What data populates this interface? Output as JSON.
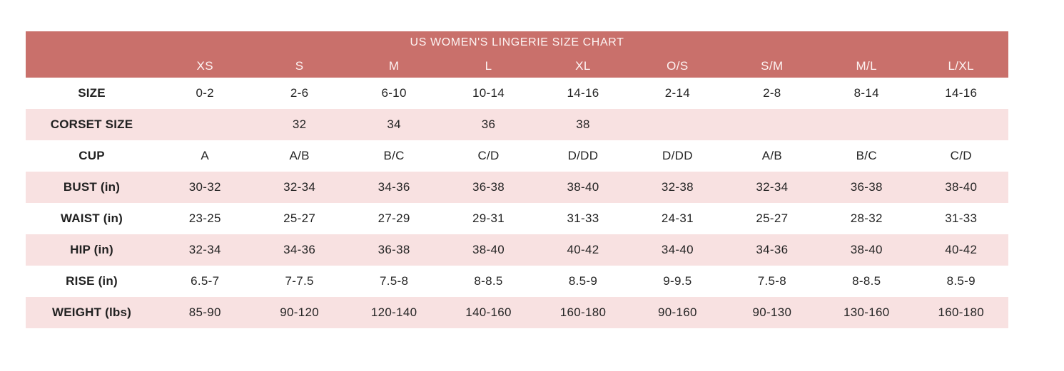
{
  "title": "US WOMEN'S LINGERIE SIZE CHART",
  "colors": {
    "header_bg": "#c9706b",
    "header_text": "#fdf3f2",
    "row_alt_bg": "#f8e1e1",
    "row_bg": "#ffffff",
    "body_text": "#242424",
    "page_bg": "#ffffff"
  },
  "chart_data": {
    "type": "table",
    "title": "US WOMEN'S LINGERIE SIZE CHART",
    "columns": [
      "",
      "XS",
      "S",
      "M",
      "L",
      "XL",
      "O/S",
      "S/M",
      "M/L",
      "L/XL"
    ],
    "rows": [
      {
        "label": "SIZE",
        "values": [
          "0-2",
          "2-6",
          "6-10",
          "10-14",
          "14-16",
          "2-14",
          "2-8",
          "8-14",
          "14-16"
        ]
      },
      {
        "label": "CORSET SIZE",
        "values": [
          "",
          "32",
          "34",
          "36",
          "38",
          "",
          "",
          "",
          ""
        ]
      },
      {
        "label": "CUP",
        "values": [
          "A",
          "A/B",
          "B/C",
          "C/D",
          "D/DD",
          "D/DD",
          "A/B",
          "B/C",
          "C/D"
        ]
      },
      {
        "label": "BUST (in)",
        "values": [
          "30-32",
          "32-34",
          "34-36",
          "36-38",
          "38-40",
          "32-38",
          "32-34",
          "36-38",
          "38-40"
        ]
      },
      {
        "label": "WAIST (in)",
        "values": [
          "23-25",
          "25-27",
          "27-29",
          "29-31",
          "31-33",
          "24-31",
          "25-27",
          "28-32",
          "31-33"
        ]
      },
      {
        "label": "HIP (in)",
        "values": [
          "32-34",
          "34-36",
          "36-38",
          "38-40",
          "40-42",
          "34-40",
          "34-36",
          "38-40",
          "40-42"
        ]
      },
      {
        "label": "RISE (in)",
        "values": [
          "6.5-7",
          "7-7.5",
          "7.5-8",
          "8-8.5",
          "8.5-9",
          "9-9.5",
          "7.5-8",
          "8-8.5",
          "8.5-9"
        ]
      },
      {
        "label": "WEIGHT (lbs)",
        "values": [
          "85-90",
          "90-120",
          "120-140",
          "140-160",
          "160-180",
          "90-160",
          "90-130",
          "130-160",
          "160-180"
        ]
      }
    ]
  }
}
